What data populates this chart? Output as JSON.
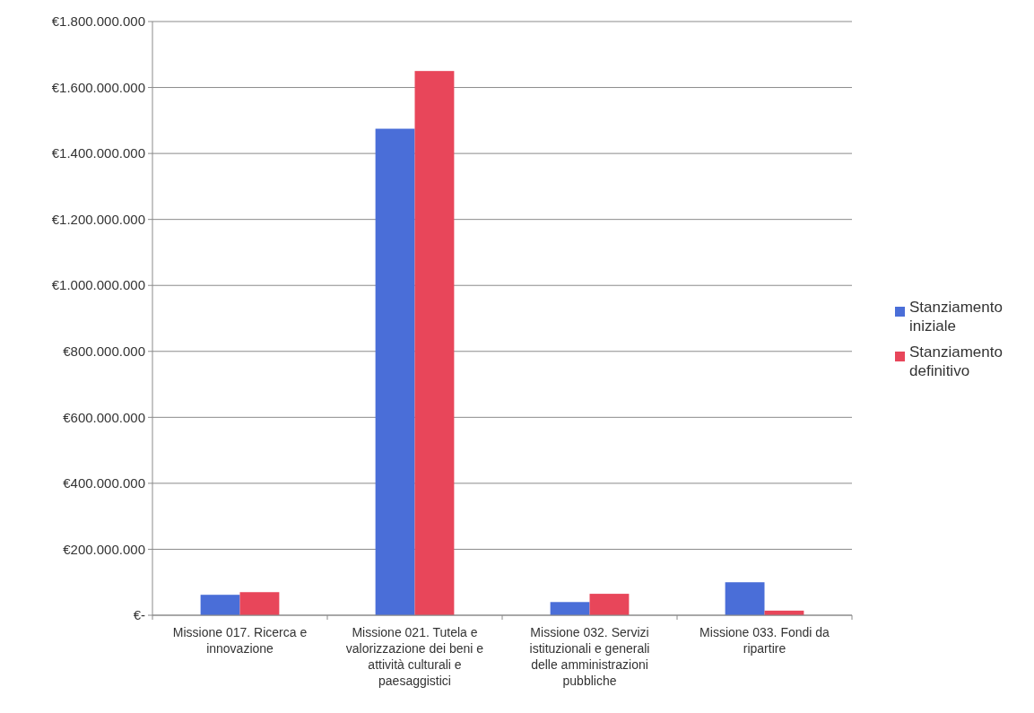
{
  "chart_data": {
    "type": "bar",
    "categories": [
      "Missione 017. Ricerca e innovazione",
      "Missione 021. Tutela e valorizzazione dei beni e attività culturali e paesaggistici",
      "Missione 032. Servizi istituzionali e generali delle amministrazioni pubbliche",
      "Missione 033. Fondi da ripartire"
    ],
    "series": [
      {
        "name": "Stanziamento iniziale",
        "color": "#4a6ed8",
        "values": [
          62000000,
          1475000000,
          40000000,
          100000000
        ]
      },
      {
        "name": "Stanziamento definitivo",
        "color": "#e8465a",
        "values": [
          70000000,
          1650000000,
          65000000,
          14000000
        ]
      }
    ],
    "ylim": [
      0,
      1800000000
    ],
    "yticks": [
      {
        "value": 0,
        "label": "€-"
      },
      {
        "value": 200000000,
        "label": "€200.000.000"
      },
      {
        "value": 400000000,
        "label": "€400.000.000"
      },
      {
        "value": 600000000,
        "label": "€600.000.000"
      },
      {
        "value": 800000000,
        "label": "€800.000.000"
      },
      {
        "value": 1000000000,
        "label": "€1.000.000.000"
      },
      {
        "value": 1200000000,
        "label": "€1.200.000.000"
      },
      {
        "value": 1400000000,
        "label": "€1.400.000.000"
      },
      {
        "value": 1600000000,
        "label": "€1.600.000.000"
      },
      {
        "value": 1800000000,
        "label": "€1.800.000.000"
      }
    ],
    "grid": "y",
    "legend": "right"
  }
}
